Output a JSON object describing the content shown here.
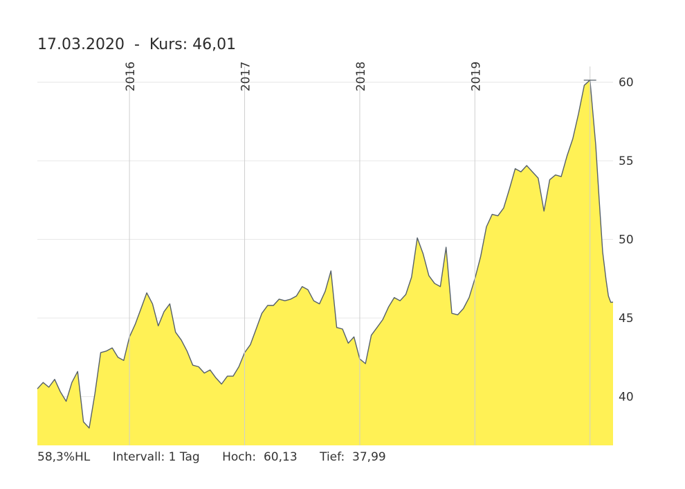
{
  "header": {
    "date": "17.03.2020",
    "separator": "-",
    "kurs_label": "Kurs:",
    "kurs_value": "46,01"
  },
  "footer": {
    "hl": "58,3%HL",
    "interval_label": "Intervall:",
    "interval_value": "1 Tag",
    "hoch_label": "Hoch:",
    "hoch_value": "60,13",
    "tief_label": "Tief:",
    "tief_value": "37,99"
  },
  "colors": {
    "fill": "#fff155",
    "line": "#55606a",
    "grid": "#e6e6e6",
    "year_grid": "#cfcfcf"
  },
  "chart_data": {
    "type": "area",
    "title": "17.03.2020 - Kurs: 46,01",
    "xlabel": "",
    "ylabel": "",
    "ylim": [
      36.9,
      61.0
    ],
    "xlim": [
      2015.2,
      2020.2
    ],
    "y_ticks": [
      40,
      45,
      50,
      55,
      60
    ],
    "year_ticks": [
      {
        "label": "2016",
        "x": 2016.0
      },
      {
        "label": "2017",
        "x": 2017.0
      },
      {
        "label": "2018",
        "x": 2018.0
      },
      {
        "label": "2019",
        "x": 2019.0
      },
      {
        "label": "",
        "x": 2020.0
      }
    ],
    "grid": true,
    "high": 60.13,
    "low": 37.99,
    "series": [
      {
        "name": "",
        "x": [
          2015.2,
          2015.25,
          2015.3,
          2015.35,
          2015.4,
          2015.45,
          2015.5,
          2015.55,
          2015.6,
          2015.65,
          2015.7,
          2015.75,
          2015.8,
          2015.85,
          2015.9,
          2015.95,
          2016.0,
          2016.05,
          2016.1,
          2016.15,
          2016.2,
          2016.25,
          2016.3,
          2016.35,
          2016.4,
          2016.45,
          2016.5,
          2016.55,
          2016.6,
          2016.65,
          2016.7,
          2016.75,
          2016.8,
          2016.85,
          2016.9,
          2016.95,
          2017.0,
          2017.05,
          2017.1,
          2017.15,
          2017.2,
          2017.25,
          2017.3,
          2017.35,
          2017.4,
          2017.45,
          2017.5,
          2017.55,
          2017.6,
          2017.65,
          2017.7,
          2017.75,
          2017.8,
          2017.85,
          2017.9,
          2017.95,
          2018.0,
          2018.05,
          2018.1,
          2018.15,
          2018.2,
          2018.25,
          2018.3,
          2018.35,
          2018.4,
          2018.45,
          2018.5,
          2018.55,
          2018.6,
          2018.65,
          2018.7,
          2018.75,
          2018.8,
          2018.85,
          2018.9,
          2018.95,
          2019.0,
          2019.05,
          2019.1,
          2019.15,
          2019.2,
          2019.25,
          2019.3,
          2019.35,
          2019.4,
          2019.45,
          2019.5,
          2019.55,
          2019.6,
          2019.65,
          2019.7,
          2019.75,
          2019.8,
          2019.85,
          2019.9,
          2019.95,
          2020.0,
          2020.05,
          2020.08,
          2020.11,
          2020.14,
          2020.16,
          2020.18,
          2020.2
        ],
        "values": [
          40.5,
          40.9,
          40.6,
          41.1,
          40.3,
          39.7,
          40.9,
          41.6,
          38.4,
          38.0,
          40.2,
          42.8,
          42.9,
          43.1,
          42.5,
          42.3,
          43.8,
          44.6,
          45.6,
          46.6,
          45.9,
          44.5,
          45.4,
          45.9,
          44.1,
          43.6,
          42.9,
          42.0,
          41.9,
          41.5,
          41.7,
          41.2,
          40.8,
          41.3,
          41.3,
          41.9,
          42.8,
          43.3,
          44.3,
          45.3,
          45.8,
          45.8,
          46.2,
          46.1,
          46.2,
          46.4,
          47.0,
          46.8,
          46.1,
          45.9,
          46.7,
          48.0,
          44.4,
          44.3,
          43.4,
          43.8,
          42.4,
          42.1,
          43.9,
          44.4,
          44.9,
          45.7,
          46.3,
          46.1,
          46.5,
          47.6,
          50.1,
          49.1,
          47.7,
          47.2,
          47.0,
          49.5,
          45.3,
          45.2,
          45.6,
          46.3,
          47.5,
          48.9,
          50.8,
          51.6,
          51.5,
          52.0,
          53.2,
          54.5,
          54.3,
          54.7,
          54.3,
          53.9,
          51.8,
          53.8,
          54.1,
          54.0,
          55.3,
          56.4,
          58.0,
          59.8,
          60.13,
          56.0,
          52.5,
          49.2,
          47.4,
          46.4,
          46.0,
          46.01
        ]
      }
    ]
  }
}
